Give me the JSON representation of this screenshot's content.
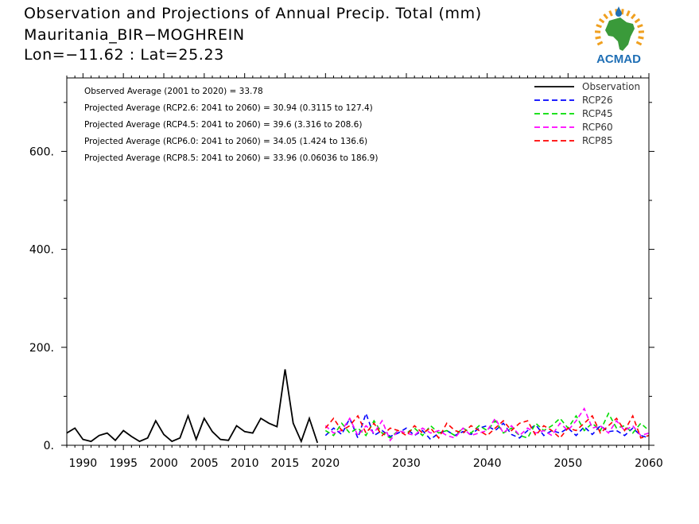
{
  "header": {
    "title": "Observation and Projections of Annual Precip. Total (mm)",
    "location": "Mauritania_BIR−MOGHREIN",
    "coords": "Lon=−11.62 : Lat=25.23"
  },
  "logo": {
    "text": "ACMAD",
    "icon": "africa-continent-icon",
    "colors": {
      "land": "#3a9a3a",
      "sun": "#f0a020",
      "text": "#1f6fb5"
    }
  },
  "chart_data": {
    "type": "line",
    "xlim": [
      1988,
      2060
    ],
    "ylim": [
      0,
      750
    ],
    "x_ticks": [
      1990,
      1995,
      2000,
      2005,
      2010,
      2015,
      2020,
      2030,
      2040,
      2050,
      2060
    ],
    "y_ticks": [
      0,
      200,
      400,
      600
    ],
    "y_tick_labels": [
      "0.",
      "200.",
      "400.",
      "600."
    ],
    "grid": false,
    "legend_placement": "top-right",
    "annotations": [
      "Observed Average (2001 to 2020) = 33.78",
      "Projected Average (RCP2.6: 2041 to 2060) = 30.94 (0.3115 to 127.4)",
      "Projected Average (RCP4.5: 2041 to 2060) = 39.6 (3.316 to 208.6)",
      "Projected Average (RCP6.0: 2041 to 2060) = 34.05 (1.424 to 136.6)",
      "Projected Average (RCP8.5: 2041 to 2060) = 33.96 (0.06036 to 186.9)"
    ],
    "series": [
      {
        "name": "Observation",
        "color": "#000000",
        "dashed": false,
        "x": [
          1988,
          1989,
          1990,
          1991,
          1992,
          1993,
          1994,
          1995,
          1996,
          1997,
          1998,
          1999,
          2000,
          2001,
          2002,
          2003,
          2004,
          2005,
          2006,
          2007,
          2008,
          2009,
          2010,
          2011,
          2012,
          2013,
          2014,
          2015,
          2016,
          2017,
          2018,
          2019
        ],
        "y": [
          25,
          35,
          12,
          8,
          20,
          25,
          10,
          30,
          18,
          8,
          15,
          50,
          22,
          8,
          15,
          60,
          12,
          55,
          28,
          12,
          10,
          40,
          28,
          25,
          55,
          45,
          38,
          155,
          45,
          8,
          55,
          5
        ]
      },
      {
        "name": "RCP26",
        "color": "#0000ff",
        "dashed": true,
        "x": [
          2020,
          2021,
          2022,
          2023,
          2024,
          2025,
          2026,
          2027,
          2028,
          2029,
          2030,
          2031,
          2032,
          2033,
          2034,
          2035,
          2036,
          2037,
          2038,
          2039,
          2040,
          2041,
          2042,
          2043,
          2044,
          2045,
          2046,
          2047,
          2048,
          2049,
          2050,
          2051,
          2052,
          2053,
          2054,
          2055,
          2056,
          2057,
          2058,
          2059,
          2060
        ],
        "y": [
          20,
          35,
          22,
          55,
          15,
          65,
          20,
          30,
          18,
          25,
          35,
          20,
          30,
          12,
          25,
          30,
          20,
          28,
          22,
          35,
          40,
          30,
          45,
          22,
          15,
          30,
          42,
          20,
          30,
          25,
          35,
          20,
          38,
          22,
          40,
          28,
          30,
          20,
          35,
          20,
          15
        ]
      },
      {
        "name": "RCP45",
        "color": "#00dd00",
        "dashed": true,
        "x": [
          2020,
          2021,
          2022,
          2023,
          2024,
          2025,
          2026,
          2027,
          2028,
          2029,
          2030,
          2031,
          2032,
          2033,
          2034,
          2035,
          2036,
          2037,
          2038,
          2039,
          2040,
          2041,
          2042,
          2043,
          2044,
          2045,
          2046,
          2047,
          2048,
          2049,
          2050,
          2051,
          2052,
          2053,
          2054,
          2055,
          2056,
          2057,
          2058,
          2059,
          2060
        ],
        "y": [
          30,
          20,
          45,
          25,
          35,
          20,
          50,
          25,
          15,
          30,
          25,
          35,
          20,
          40,
          25,
          30,
          20,
          35,
          25,
          40,
          30,
          50,
          25,
          35,
          20,
          15,
          45,
          30,
          40,
          55,
          35,
          60,
          30,
          45,
          30,
          65,
          35,
          40,
          25,
          45,
          30
        ]
      },
      {
        "name": "RCP60",
        "color": "#ff00ff",
        "dashed": true,
        "x": [
          2020,
          2021,
          2022,
          2023,
          2024,
          2025,
          2026,
          2027,
          2028,
          2029,
          2030,
          2031,
          2032,
          2033,
          2034,
          2035,
          2036,
          2037,
          2038,
          2039,
          2040,
          2041,
          2042,
          2043,
          2044,
          2045,
          2046,
          2047,
          2048,
          2049,
          2050,
          2051,
          2052,
          2053,
          2054,
          2055,
          2056,
          2057,
          2058,
          2059,
          2060
        ],
        "y": [
          40,
          25,
          30,
          55,
          20,
          40,
          25,
          50,
          10,
          30,
          25,
          20,
          35,
          25,
          30,
          20,
          15,
          35,
          20,
          25,
          30,
          55,
          25,
          40,
          20,
          35,
          25,
          30,
          20,
          45,
          30,
          50,
          75,
          35,
          40,
          25,
          50,
          30,
          40,
          20,
          25
        ]
      },
      {
        "name": "RCP85",
        "color": "#ff0000",
        "dashed": true,
        "x": [
          2020,
          2021,
          2022,
          2023,
          2024,
          2025,
          2026,
          2027,
          2028,
          2029,
          2030,
          2031,
          2032,
          2033,
          2034,
          2035,
          2036,
          2037,
          2038,
          2039,
          2040,
          2041,
          2042,
          2043,
          2044,
          2045,
          2046,
          2047,
          2048,
          2049,
          2050,
          2051,
          2052,
          2053,
          2054,
          2055,
          2056,
          2057,
          2058,
          2059,
          2060
        ],
        "y": [
          35,
          55,
          30,
          40,
          60,
          25,
          45,
          20,
          35,
          30,
          20,
          40,
          25,
          35,
          15,
          45,
          30,
          25,
          40,
          30,
          20,
          35,
          50,
          30,
          45,
          50,
          20,
          40,
          30,
          15,
          35,
          30,
          45,
          60,
          25,
          40,
          55,
          30,
          60,
          15,
          20
        ]
      }
    ]
  }
}
